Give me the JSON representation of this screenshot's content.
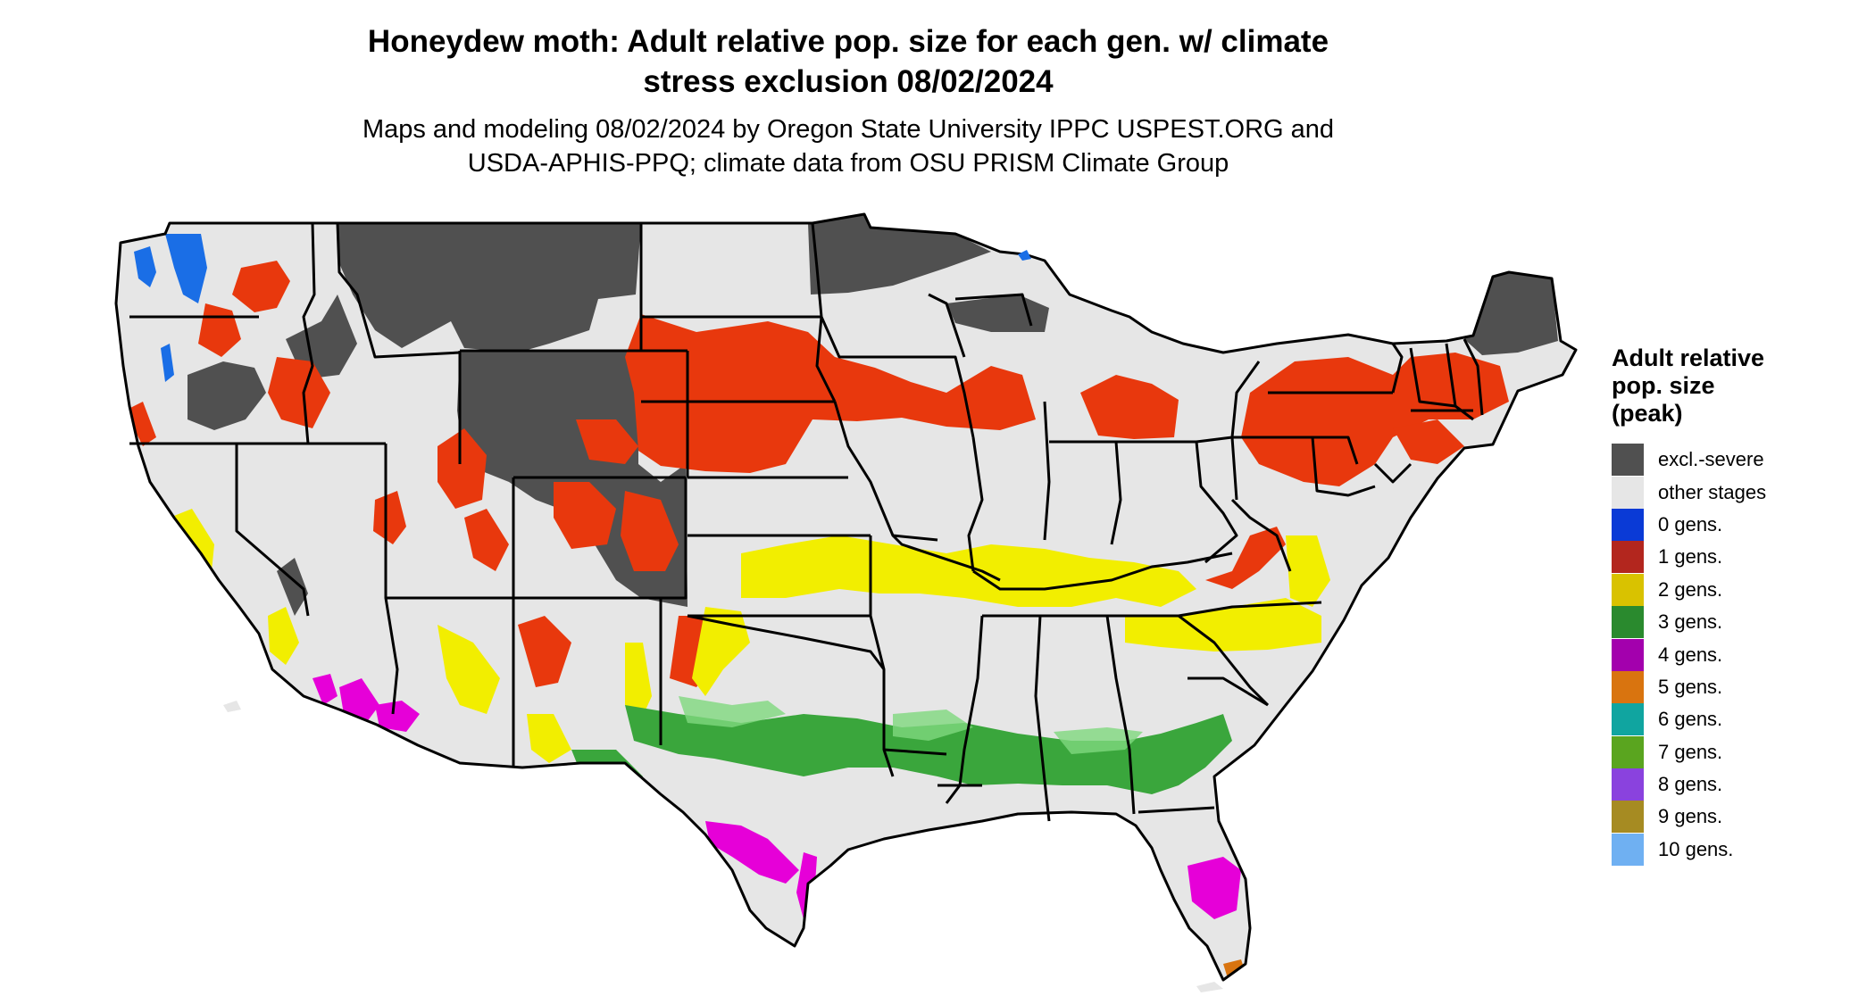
{
  "title": {
    "line1": "Honeydew moth: Adult relative pop. size for each gen. w/ climate",
    "line2": "stress exclusion 08/02/2024"
  },
  "subtitle": {
    "line1": "Maps and modeling 08/02/2024 by Oregon State University IPPC USPEST.ORG and",
    "line2": "USDA-APHIS-PPQ; climate data from OSU PRISM Climate Group"
  },
  "legend": {
    "title_lines": [
      "Adult relative",
      "pop. size",
      "(peak)"
    ],
    "items": [
      {
        "label": "excl.-severe",
        "color": "#505050"
      },
      {
        "label": "other stages",
        "color": "#e6e6e6"
      },
      {
        "label": "0 gens.",
        "color": "#0a3ad6"
      },
      {
        "label": "1 gens.",
        "color": "#b3261e"
      },
      {
        "label": "2 gens.",
        "color": "#d9c200"
      },
      {
        "label": "3 gens.",
        "color": "#2a8a2e"
      },
      {
        "label": "4 gens.",
        "color": "#a300ad"
      },
      {
        "label": "5 gens.",
        "color": "#d9740f"
      },
      {
        "label": "6 gens.",
        "color": "#10a5a0"
      },
      {
        "label": "7 gens.",
        "color": "#5aa51f"
      },
      {
        "label": "8 gens.",
        "color": "#8a42de"
      },
      {
        "label": "9 gens.",
        "color": "#a68b22"
      },
      {
        "label": "10 gens.",
        "color": "#6fb0f2"
      }
    ]
  },
  "map_colors": {
    "land": "#e6e6e6",
    "excluded": "#505050",
    "gen1": "#e8380d",
    "gen1_dark": "#b3261e",
    "gen2": "#f2ee00",
    "gen3": "#3aa63c",
    "gen3_light": "#7fd87e",
    "gen4": "#e600d8",
    "gen0": "#1a6ee6",
    "border": "#000000"
  }
}
